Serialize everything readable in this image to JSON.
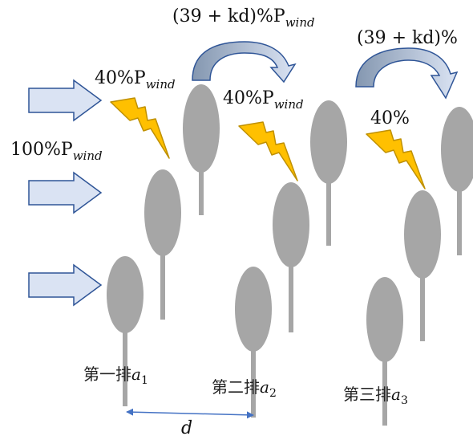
{
  "labels": {
    "top_expr_1": "(39 + kd)%P",
    "top_expr_1_sub": "wind",
    "top_expr_2": "(39 + kd)%",
    "p40_first_num": "40%P",
    "p40_first_sub": "wind",
    "p40_second_num": "40%P",
    "p40_second_sub": "wind",
    "p40_third": "40%",
    "p100_num": "100%P",
    "p100_sub": "wind",
    "distance": "d"
  },
  "rows": [
    {
      "label": "第一排",
      "var": "a",
      "sub": "1"
    },
    {
      "label": "第二排",
      "var": "a",
      "sub": "2"
    },
    {
      "label": "第三排",
      "var": "a",
      "sub": "3"
    }
  ],
  "colors": {
    "turbine": "#a6a6a6",
    "wind_arrow_fill": "#dae3f3",
    "wind_arrow_stroke": "#2f5597",
    "curved_arrow_start": "#8497b0",
    "curved_arrow_end": "#dae3f3",
    "lightning_fill": "#ffc000",
    "lightning_stroke": "#bf9000",
    "dimension_line": "#4472c4"
  },
  "icons": {
    "wind": "wind-arrow-icon",
    "wake": "lightning-icon",
    "transfer": "curved-arrow-icon"
  }
}
